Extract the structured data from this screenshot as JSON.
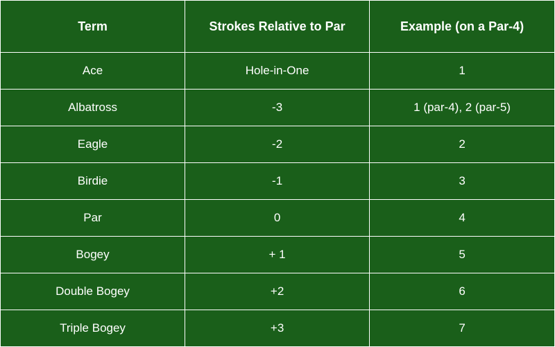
{
  "table": {
    "type": "table",
    "background_color": "#1a5f1a",
    "text_color": "#ffffff",
    "border_color": "#ffffff",
    "header_font_size": 18,
    "body_font_size": 17,
    "header_font_weight": 700,
    "body_font_weight": 400,
    "columns": [
      {
        "label": "Term",
        "width_pct": 33.3
      },
      {
        "label": "Strokes Relative to Par",
        "width_pct": 33.3
      },
      {
        "label": "Example (on a Par-4)",
        "width_pct": 33.4
      }
    ],
    "rows": [
      {
        "term": "Ace",
        "relative": "Hole-in-One",
        "example": "1"
      },
      {
        "term": "Albatross",
        "relative": "-3",
        "example": "1 (par-4), 2 (par-5)"
      },
      {
        "term": "Eagle",
        "relative": "-2",
        "example": "2"
      },
      {
        "term": "Birdie",
        "relative": "-1",
        "example": "3"
      },
      {
        "term": "Par",
        "relative": "0",
        "example": "4"
      },
      {
        "term": "Bogey",
        "relative": "+ 1",
        "example": "5"
      },
      {
        "term": "Double Bogey",
        "relative": "+2",
        "example": "6"
      },
      {
        "term": "Triple Bogey",
        "relative": "+3",
        "example": "7"
      }
    ]
  }
}
